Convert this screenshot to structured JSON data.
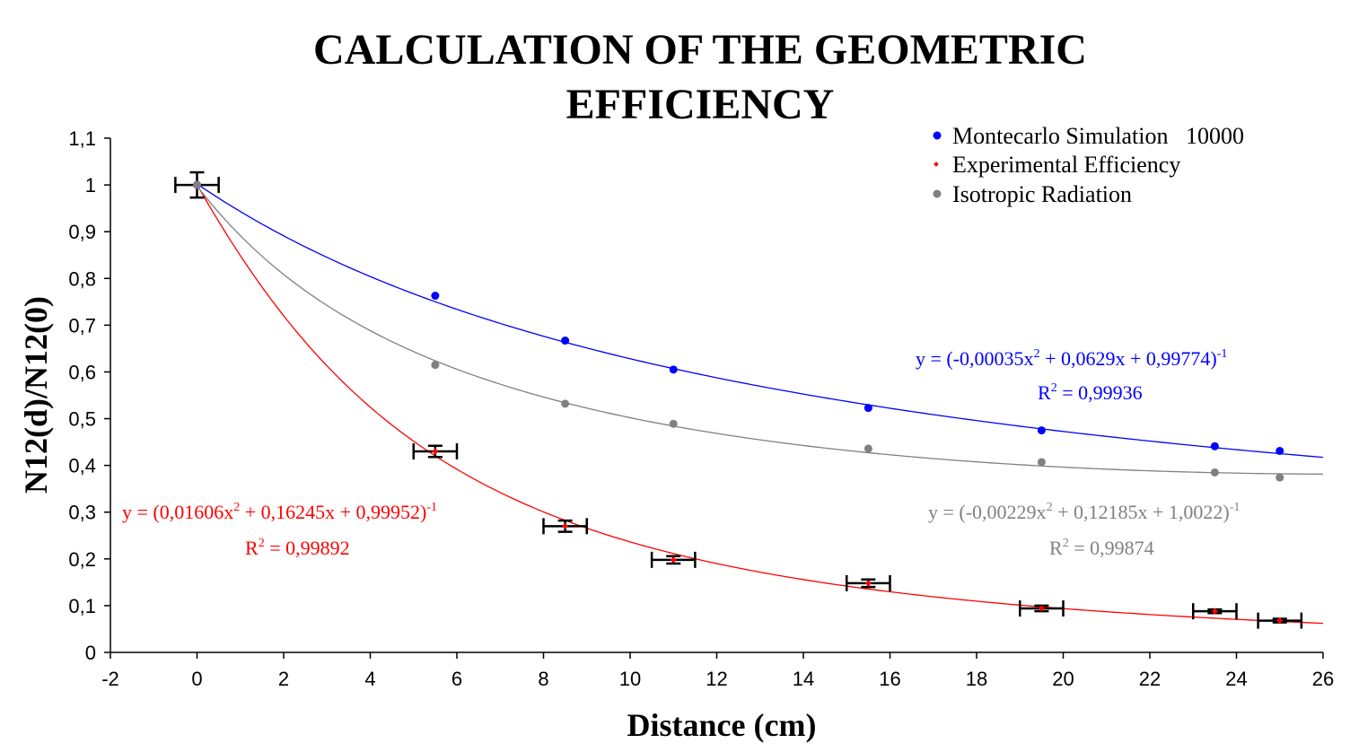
{
  "chart_data": {
    "type": "scatter",
    "title_line1": "CALCULATION OF THE GEOMETRIC",
    "title_line2": "EFFICIENCY",
    "xlabel": "Distance (cm)",
    "ylabel": "N12(d)/N12(0)",
    "xlim": [
      -2,
      26
    ],
    "ylim": [
      0,
      1.1
    ],
    "x_ticks": [
      -2,
      0,
      2,
      4,
      6,
      8,
      10,
      12,
      14,
      16,
      18,
      20,
      22,
      24,
      26
    ],
    "x_tick_labels": [
      "-2",
      "0",
      "2",
      "4",
      "6",
      "8",
      "10",
      "12",
      "14",
      "16",
      "18",
      "20",
      "22",
      "24",
      "26"
    ],
    "y_ticks": [
      0,
      0.1,
      0.2,
      0.3,
      0.4,
      0.5,
      0.6,
      0.7,
      0.8,
      0.9,
      1,
      1.1
    ],
    "y_tick_labels": [
      "0",
      "0,1",
      "0,2",
      "0,3",
      "0,4",
      "0,5",
      "0,6",
      "0,7",
      "0,8",
      "0,9",
      "1",
      "1,1"
    ],
    "grid": false,
    "legend_position": "top-right",
    "series": [
      {
        "name": "Montecarlo Simulation   10000",
        "color": "#0000ff",
        "marker": "circle",
        "x": [
          0,
          5.5,
          8.5,
          11,
          15.5,
          19.5,
          23.5,
          25
        ],
        "y": [
          1.0,
          0.763,
          0.667,
          0.605,
          0.523,
          0.475,
          0.441,
          0.431
        ],
        "fit": {
          "a": -0.00035,
          "b": 0.0629,
          "c": 0.99774,
          "x_range": [
            0,
            26
          ]
        },
        "fit_equation": "y = (-0,00035x",
        "fit_equation_tail": " + 0,0629x + 0,99774)",
        "r2_label": "R",
        "r2_value": " = 0,99936"
      },
      {
        "name": "Experimental Efficiency",
        "color": "#ff0000",
        "marker": "diamond",
        "x": [
          0,
          5.5,
          8.5,
          11,
          15.5,
          19.5,
          23.5,
          25
        ],
        "y": [
          1.0,
          0.43,
          0.27,
          0.198,
          0.148,
          0.094,
          0.088,
          0.068
        ],
        "y_err": [
          0.027,
          0.012,
          0.012,
          0.008,
          0.008,
          0.006,
          0.004,
          0.004
        ],
        "x_err": [
          0.5,
          0.5,
          0.5,
          0.5,
          0.5,
          0.5,
          0.5,
          0.5
        ],
        "fit": {
          "a": 0.01606,
          "b": 0.16245,
          "c": 0.99952,
          "x_range": [
            0,
            26
          ]
        },
        "fit_equation": "y = (0,01606x",
        "fit_equation_tail": " + 0,16245x + 0,99952)",
        "r2_label": "R",
        "r2_value": " = 0,99892"
      },
      {
        "name": "Isotropic Radiation",
        "color": "#808080",
        "marker": "circle",
        "x": [
          0,
          5.5,
          8.5,
          11,
          15.5,
          19.5,
          23.5,
          25
        ],
        "y": [
          1.0,
          0.615,
          0.532,
          0.489,
          0.436,
          0.407,
          0.385,
          0.374
        ],
        "fit": {
          "a": -0.00229,
          "b": 0.12185,
          "c": 1.0022,
          "x_range": [
            0,
            26
          ]
        },
        "fit_equation": "y = (-0,00229x",
        "fit_equation_tail": " + 0,12185x + 1,0022)",
        "r2_label": "R",
        "r2_value": " = 0,99874"
      }
    ],
    "superscript_two": "2",
    "superscript_minus_one": "-1"
  }
}
